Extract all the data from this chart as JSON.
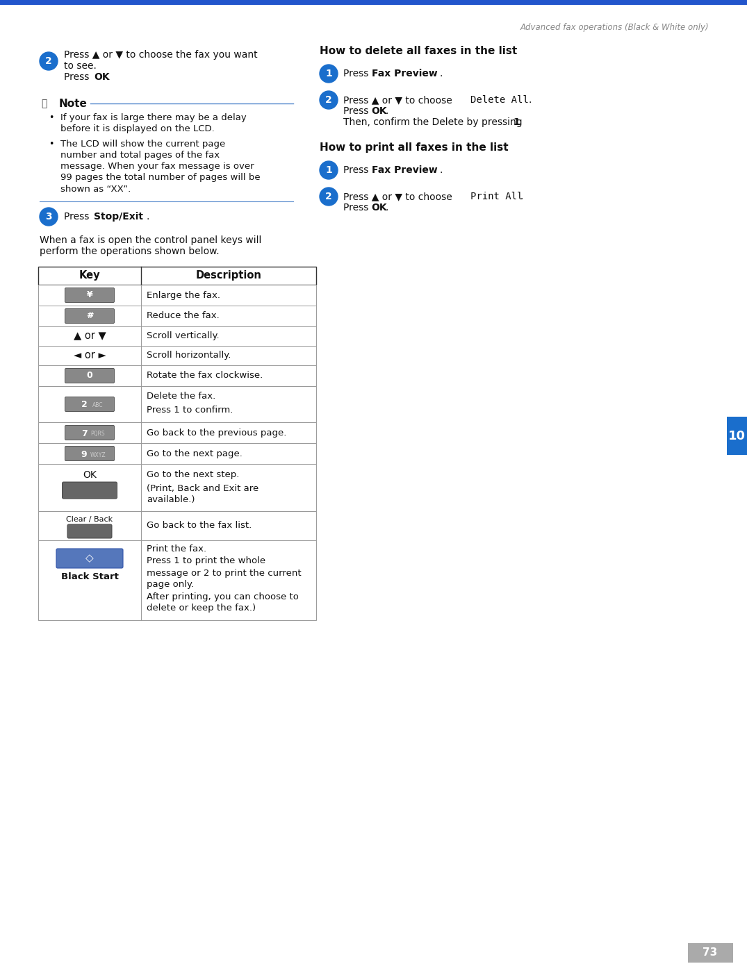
{
  "page_title": "Advanced fax operations (Black & White only)",
  "page_number": "73",
  "chapter_number": "10",
  "background_color": "#ffffff",
  "top_bar_color": "#2255cc",
  "header_text_color": "#888888",
  "blue_circle_color": "#1a6ecc",
  "blue_line_color": "#5588cc",
  "body_text_color": "#111111",
  "note_title": "Note",
  "step2_text_line1": "Press ▲ or ▼ to choose the fax you want",
  "step2_text_line2": "to see.",
  "step2_text_ok": "Press ",
  "step2_ok_bold": "OK",
  "step2_ok_period": ".",
  "note_bullet1_line1": "If your fax is large there may be a delay",
  "note_bullet1_line2": "before it is displayed on the LCD.",
  "note_bullet2_line1": "The LCD will show the current page",
  "note_bullet2_line2": "number and total pages of the fax",
  "note_bullet2_line3": "message. When your fax message is over",
  "note_bullet2_line4": "99 pages the total number of pages will be",
  "note_bullet2_line5": "shown as “XX”.",
  "step3_press": "Press ",
  "step3_bold": "Stop/Exit",
  "step3_period": ".",
  "para_text_line1": "When a fax is open the control panel keys will",
  "para_text_line2": "perform the operations shown below.",
  "right_section_title1": "How to delete all faxes in the list",
  "right_section_title2": "How to print all faxes in the list",
  "table_header_key": "Key",
  "table_header_desc": "Description",
  "table_rows": [
    {
      "key_type": "button_gray",
      "key_label": "¥",
      "key_sub": "",
      "desc_lines": [
        "Enlarge the fax."
      ]
    },
    {
      "key_type": "button_gray",
      "key_label": "#",
      "key_sub": "",
      "desc_lines": [
        "Reduce the fax."
      ]
    },
    {
      "key_type": "plain_text",
      "key_label": "▲ or ▼",
      "key_sub": "",
      "desc_lines": [
        "Scroll vertically."
      ]
    },
    {
      "key_type": "plain_text",
      "key_label": "◄ or ►",
      "key_sub": "",
      "desc_lines": [
        "Scroll horizontally."
      ]
    },
    {
      "key_type": "button_gray",
      "key_label": "0",
      "key_sub": "",
      "desc_lines": [
        "Rotate the fax clockwise."
      ]
    },
    {
      "key_type": "button_gray",
      "key_label": "2",
      "key_sub": "ABC",
      "desc_lines": [
        "Delete the fax.",
        "Press 1 to confirm."
      ]
    },
    {
      "key_type": "button_gray",
      "key_label": "7",
      "key_sub": "PQRS",
      "desc_lines": [
        "Go back to the previous page."
      ]
    },
    {
      "key_type": "button_gray",
      "key_label": "9",
      "key_sub": "WXYZ",
      "desc_lines": [
        "Go to the next page."
      ]
    },
    {
      "key_type": "ok_button",
      "key_label": "OK",
      "key_sub": "",
      "desc_lines": [
        "Go to the next step.",
        "(Print, Back and Exit are",
        "available.)"
      ]
    },
    {
      "key_type": "clearback_button",
      "key_label": "Clear / Back",
      "key_sub": "",
      "desc_lines": [
        "Go back to the fax list."
      ]
    },
    {
      "key_type": "black_start",
      "key_label": "Black Start",
      "key_sub": "",
      "desc_lines": [
        "Print the fax.",
        "Press 1 to print the whole",
        "message or 2 to print the current",
        "page only.",
        "After printing, you can choose to",
        "delete or keep the fax.)"
      ]
    }
  ]
}
